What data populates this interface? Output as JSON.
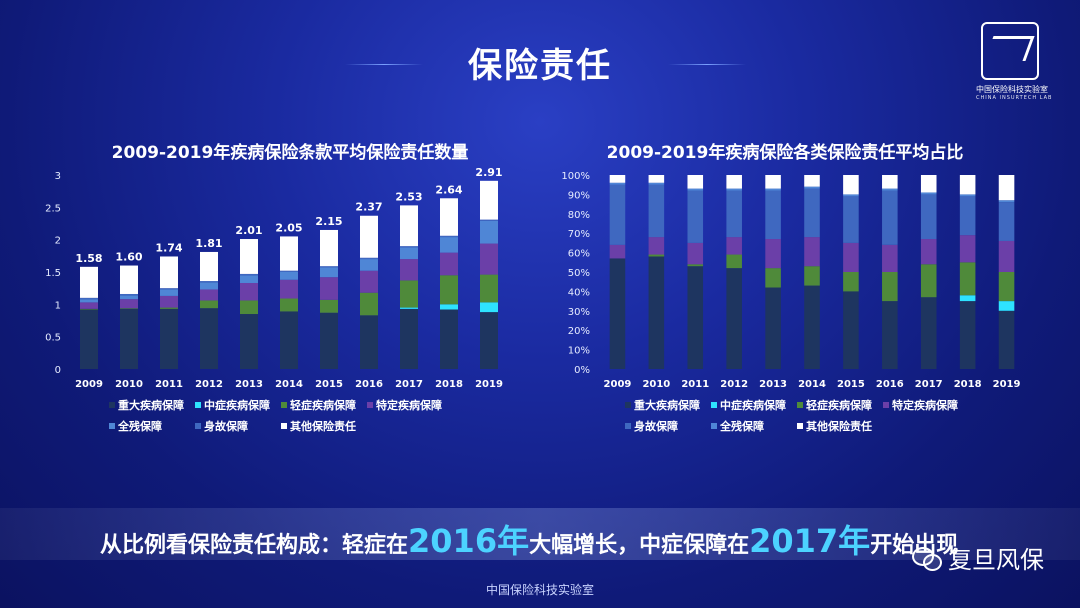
{
  "page": {
    "title": "保险责任",
    "logo_cn": "中国保险科技实验室",
    "logo_en": "CHINA INSURTECH LAB",
    "banner_prefix": "从比例看保险责任构成：轻症在",
    "banner_year1": "2016年",
    "banner_mid": "大幅增长，中症保障在",
    "banner_year2": "2017年",
    "banner_suffix": "开始出现",
    "footer": "中国保险科技实验室",
    "watermark": "复旦风保"
  },
  "colors": {
    "重大疾病保障": "#1e3560",
    "中症疾病保障": "#2ee3ff",
    "轻症疾病保障": "#4f8a3a",
    "特定疾病保障": "#6b3fa8",
    "全残保障": "#4f86d6",
    "身故保障": "#3f68c0",
    "其他保险责任": "#ffffff"
  },
  "chart_data": [
    {
      "type": "bar",
      "stacked": true,
      "title": "2009-2019年疾病保险条款平均保险责任数量",
      "categories": [
        "2009",
        "2010",
        "2011",
        "2012",
        "2013",
        "2014",
        "2015",
        "2016",
        "2017",
        "2018",
        "2019"
      ],
      "ylim": [
        0,
        3
      ],
      "yticks": [
        "0",
        "0.5",
        "1",
        "1.5",
        "2",
        "2.5",
        "3"
      ],
      "totals": [
        "1.58",
        "1.60",
        "1.74",
        "1.81",
        "2.01",
        "2.05",
        "2.15",
        "2.37",
        "2.53",
        "2.64",
        "2.91"
      ],
      "legend": [
        "重大疾病保障",
        "中症疾病保障",
        "轻症疾病保障",
        "特定疾病保障",
        "全残保障",
        "身故保障",
        "其他保险责任"
      ],
      "series": [
        {
          "name": "重大疾病保障",
          "values": [
            0.92,
            0.93,
            0.93,
            0.94,
            0.85,
            0.89,
            0.87,
            0.83,
            0.93,
            0.92,
            0.88
          ]
        },
        {
          "name": "中症疾病保障",
          "values": [
            0,
            0,
            0,
            0,
            0,
            0,
            0,
            0,
            0.02,
            0.08,
            0.15
          ]
        },
        {
          "name": "轻症疾病保障",
          "values": [
            0.01,
            0.01,
            0.02,
            0.12,
            0.21,
            0.2,
            0.2,
            0.35,
            0.42,
            0.45,
            0.43
          ]
        },
        {
          "name": "特定疾病保障",
          "values": [
            0.1,
            0.14,
            0.18,
            0.17,
            0.27,
            0.29,
            0.35,
            0.34,
            0.33,
            0.35,
            0.48
          ]
        },
        {
          "name": "全残保障",
          "values": [
            0.05,
            0.06,
            0.1,
            0.11,
            0.12,
            0.12,
            0.15,
            0.18,
            0.18,
            0.24,
            0.35
          ]
        },
        {
          "name": "身故保障",
          "values": [
            0.02,
            0.02,
            0.02,
            0.02,
            0.02,
            0.02,
            0.02,
            0.02,
            0.02,
            0.02,
            0.02
          ]
        },
        {
          "name": "其他保险责任",
          "values": [
            0.48,
            0.44,
            0.49,
            0.45,
            0.54,
            0.53,
            0.56,
            0.65,
            0.63,
            0.58,
            0.6
          ]
        }
      ]
    },
    {
      "type": "bar",
      "stacked": true,
      "title": "2009-2019年疾病保险各类保险责任平均占比",
      "categories": [
        "2009",
        "2010",
        "2011",
        "2012",
        "2013",
        "2014",
        "2015",
        "2016",
        "2017",
        "2018",
        "2019"
      ],
      "ylim": [
        0,
        100
      ],
      "yticks": [
        "0%",
        "10%",
        "20%",
        "30%",
        "40%",
        "50%",
        "60%",
        "70%",
        "80%",
        "90%",
        "100%"
      ],
      "legend": [
        "重大疾病保障",
        "中症疾病保障",
        "轻症疾病保障",
        "特定疾病保障",
        "身故保障",
        "全残保障",
        "其他保险责任"
      ],
      "series": [
        {
          "name": "重大疾病保障",
          "values": [
            57,
            58,
            53,
            52,
            42,
            43,
            40,
            35,
            37,
            35,
            30
          ]
        },
        {
          "name": "中症疾病保障",
          "values": [
            0,
            0,
            0,
            0,
            0,
            0,
            0,
            0,
            0,
            3,
            5
          ]
        },
        {
          "name": "轻症疾病保障",
          "values": [
            0,
            1,
            1,
            7,
            10,
            10,
            10,
            15,
            17,
            17,
            15
          ]
        },
        {
          "name": "特定疾病保障",
          "values": [
            7,
            9,
            11,
            9,
            15,
            15,
            15,
            14,
            13,
            14,
            16
          ]
        },
        {
          "name": "身故保障",
          "values": [
            31,
            27,
            27,
            24,
            25,
            25,
            24,
            28,
            23,
            20,
            20
          ]
        },
        {
          "name": "全残保障",
          "values": [
            1,
            1,
            1,
            1,
            1,
            1,
            1,
            1,
            1,
            1,
            1
          ]
        },
        {
          "name": "其他保险责任",
          "values": [
            4,
            4,
            7,
            7,
            7,
            6,
            10,
            7,
            9,
            10,
            13
          ]
        }
      ]
    }
  ]
}
